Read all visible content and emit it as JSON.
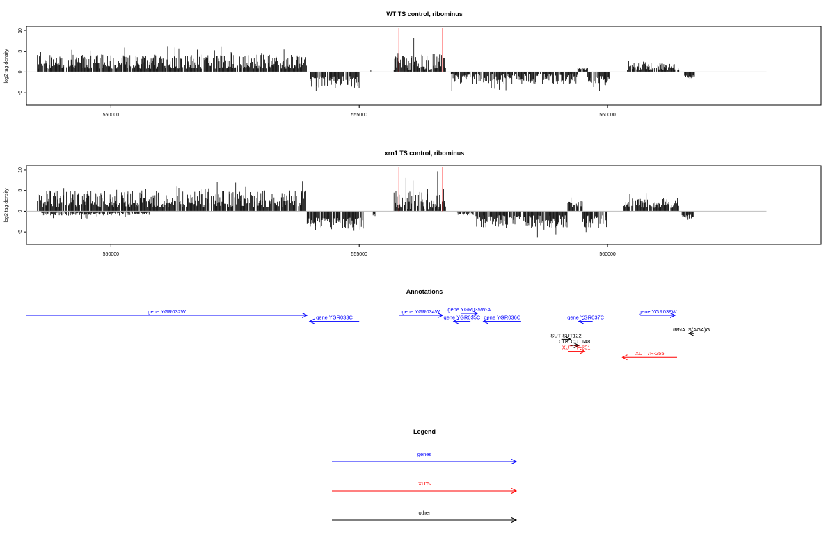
{
  "colors": {
    "gene": "#0000ff",
    "xut": "#ff0000",
    "other": "#000000",
    "track_bar": "#000000",
    "marker": "#ff0000",
    "baseline": "#bebebe"
  },
  "chart_data": [
    {
      "type": "bar",
      "title": "WT TS control, ribominus",
      "ylabel": "log2 tag density",
      "xlim": [
        548300,
        564300
      ],
      "ylim": [
        -8,
        11
      ],
      "yticks": [
        -5,
        0,
        5,
        10
      ],
      "xticks": [
        550000,
        555000,
        560000
      ],
      "xtick_labels": [
        "550000",
        "555000",
        "560000"
      ],
      "baseline": 0,
      "markers_x": [
        555800,
        556680
      ],
      "segments": [
        {
          "x0": 548520,
          "x1": 553950,
          "sign": 1,
          "min": 0.8,
          "max": 4.2,
          "peak": 6.8
        },
        {
          "x0": 554000,
          "x1": 555000,
          "sign": -1,
          "min": 1.0,
          "max": 4.0,
          "peak": 4.8
        },
        {
          "x0": 555220,
          "x1": 555240,
          "sign": 1,
          "min": 0.5,
          "max": 0.8,
          "peak": 0.8
        },
        {
          "x0": 555700,
          "x1": 556750,
          "sign": 1,
          "min": 0.5,
          "max": 4.8,
          "peak": 9.8
        },
        {
          "x0": 556850,
          "x1": 559400,
          "sign": -1,
          "min": 0.4,
          "max": 3.0,
          "peak": 4.8
        },
        {
          "x0": 559400,
          "x1": 559600,
          "sign": 1,
          "min": 0.5,
          "max": 1.0,
          "peak": 1.2
        },
        {
          "x0": 559600,
          "x1": 560050,
          "sign": -1,
          "min": 1.0,
          "max": 4.0,
          "peak": 5.5
        },
        {
          "x0": 560400,
          "x1": 561450,
          "sign": 1,
          "min": 0.5,
          "max": 2.5,
          "peak": 3.3
        },
        {
          "x0": 561550,
          "x1": 561750,
          "sign": -1,
          "min": 0.8,
          "max": 1.8,
          "peak": 2.2
        }
      ]
    },
    {
      "type": "bar",
      "title": "xrn1 TS control, ribominus",
      "ylabel": "log2 tag density",
      "xlim": [
        548300,
        564300
      ],
      "ylim": [
        -8,
        11
      ],
      "yticks": [
        -5,
        0,
        5,
        10
      ],
      "xticks": [
        550000,
        555000,
        560000
      ],
      "xtick_labels": [
        "550000",
        "555000",
        "560000"
      ],
      "baseline": 0,
      "markers_x": [
        555800,
        556680
      ],
      "segments": [
        {
          "x0": 548520,
          "x1": 553950,
          "sign": 1,
          "min": 1.0,
          "max": 5.0,
          "peak": 7.8
        },
        {
          "x0": 548600,
          "x1": 550800,
          "sign": -1,
          "min": 0.3,
          "max": 1.0,
          "peak": 2.0
        },
        {
          "x0": 553950,
          "x1": 555100,
          "sign": -1,
          "min": 1.5,
          "max": 4.5,
          "peak": 6.0
        },
        {
          "x0": 555280,
          "x1": 555320,
          "sign": -1,
          "min": 0.5,
          "max": 1.5,
          "peak": 1.5
        },
        {
          "x0": 555700,
          "x1": 556750,
          "sign": 1,
          "min": 0.5,
          "max": 5.0,
          "peak": 9.8
        },
        {
          "x0": 556950,
          "x1": 557300,
          "sign": -1,
          "min": 0.3,
          "max": 1.0,
          "peak": 1.8
        },
        {
          "x0": 557350,
          "x1": 559200,
          "sign": -1,
          "min": 1.0,
          "max": 4.0,
          "peak": 7.0
        },
        {
          "x0": 559200,
          "x1": 559500,
          "sign": 1,
          "min": 1.0,
          "max": 2.5,
          "peak": 3.5
        },
        {
          "x0": 559500,
          "x1": 560000,
          "sign": -1,
          "min": 1.0,
          "max": 4.0,
          "peak": 5.5
        },
        {
          "x0": 560300,
          "x1": 561450,
          "sign": 1,
          "min": 0.8,
          "max": 3.2,
          "peak": 4.8
        },
        {
          "x0": 561500,
          "x1": 561750,
          "sign": -1,
          "min": 0.8,
          "max": 2.0,
          "peak": 2.5
        }
      ]
    }
  ],
  "annotations": {
    "title": "Annotations",
    "features": [
      {
        "label": "gene YGR032W",
        "category": "gene",
        "start": 548300,
        "end": 553950,
        "strand": "+",
        "row": 0
      },
      {
        "label": "gene YGR033C",
        "category": "gene",
        "start": 554000,
        "end": 555000,
        "strand": "-",
        "row": 1
      },
      {
        "label": "gene YGR034W",
        "category": "gene",
        "start": 555800,
        "end": 556680,
        "strand": "+",
        "row": 0
      },
      {
        "label": "gene YGR035W-A",
        "category": "gene",
        "start": 557050,
        "end": 557380,
        "strand": "+",
        "row": -0.35
      },
      {
        "label": "gene YGR035C",
        "category": "gene",
        "start": 556900,
        "end": 557240,
        "strand": "-",
        "row": 1
      },
      {
        "label": "gene YGR036C",
        "category": "gene",
        "start": 557500,
        "end": 558260,
        "strand": "-",
        "row": 1
      },
      {
        "label": "gene YGR037C",
        "category": "gene",
        "start": 559420,
        "end": 559700,
        "strand": "-",
        "row": 1
      },
      {
        "label": "gene YGR038W",
        "category": "gene",
        "start": 560660,
        "end": 561360,
        "strand": "+",
        "row": 0
      },
      {
        "label": "tRNA tS(AGA)G",
        "category": "other",
        "start": 561640,
        "end": 561740,
        "strand": "-",
        "row": 3
      },
      {
        "label": "SUT SUT122",
        "category": "other",
        "start": 559070,
        "end": 559260,
        "strand": "+",
        "row": 4
      },
      {
        "label": "CUT CUT148",
        "category": "other",
        "start": 559250,
        "end": 559420,
        "strand": "+",
        "row": 5
      },
      {
        "label": "XUT 7F-251",
        "category": "xut",
        "start": 559200,
        "end": 559540,
        "strand": "+",
        "row": 6
      },
      {
        "label": "XUT 7R-255",
        "category": "xut",
        "start": 560300,
        "end": 561400,
        "strand": "-",
        "row": 7
      }
    ]
  },
  "legend": {
    "title": "Legend",
    "items": [
      {
        "label": "genes",
        "category": "gene"
      },
      {
        "label": "XUTs",
        "category": "xut"
      },
      {
        "label": "other",
        "category": "other"
      }
    ]
  }
}
